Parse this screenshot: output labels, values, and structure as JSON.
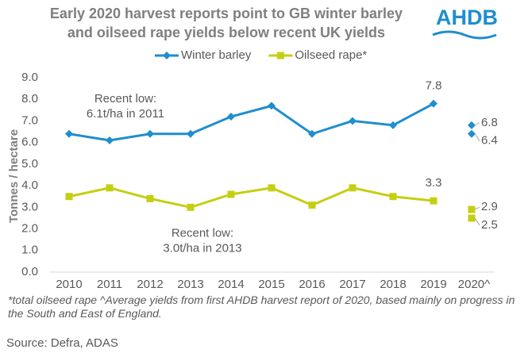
{
  "chart_data": {
    "type": "line",
    "title": [
      "Early 2020 harvest reports point to GB winter barley",
      "and oilseed rape yields below recent UK yields"
    ],
    "logo": "AHDB",
    "y_label": "Tonnes / hectare",
    "categories": [
      "2010",
      "2011",
      "2012",
      "2013",
      "2014",
      "2015",
      "2016",
      "2017",
      "2018",
      "2019",
      "2020^"
    ],
    "series": [
      {
        "name": "Winter barley",
        "color": "#1f8ecd",
        "marker": "diamond",
        "values": [
          6.4,
          6.1,
          6.4,
          6.4,
          7.2,
          7.7,
          6.4,
          7.0,
          6.8,
          7.8,
          null
        ],
        "label_indices": [
          9
        ],
        "estimates": [
          6.8,
          6.4
        ]
      },
      {
        "name": "Oilseed rape*",
        "color": "#c5cf12",
        "marker": "square",
        "values": [
          3.5,
          3.9,
          3.4,
          3.0,
          3.6,
          3.9,
          3.1,
          3.9,
          3.5,
          3.3,
          null
        ],
        "label_indices": [
          9
        ],
        "estimates": [
          2.9,
          2.5
        ]
      }
    ],
    "annotations": [
      [
        "Recent low:",
        "6.1t/ha in 2011"
      ],
      [
        "Recent low:",
        "3.0t/ha in 2013"
      ]
    ],
    "ylim": [
      0,
      9
    ],
    "yticks": [
      {
        "value": 0,
        "label": "0.0"
      },
      {
        "value": 1,
        "label": "1.0"
      },
      {
        "value": 2,
        "label": "2.0"
      },
      {
        "value": 3,
        "label": "3.0"
      },
      {
        "value": 4,
        "label": "4.0"
      },
      {
        "value": 5,
        "label": "5.0"
      },
      {
        "value": 6,
        "label": "6.0"
      },
      {
        "value": 7,
        "label": "7.0"
      },
      {
        "value": 8,
        "label": "8.0"
      },
      {
        "value": 9,
        "label": "9.0"
      }
    ],
    "grid": false,
    "legend": "top",
    "footnote": "*total oilseed rape  ^Average yields from first AHDB harvest report of 2020, based mainly on progress in the South and East of England.",
    "source": "Source: Defra, ADAS"
  }
}
